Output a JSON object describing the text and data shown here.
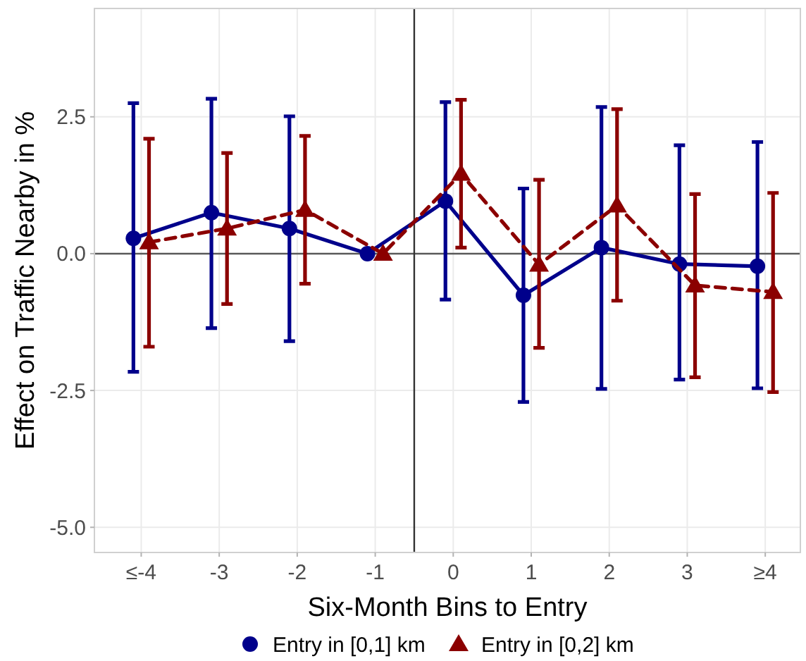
{
  "chart_data": {
    "type": "line",
    "xlabel": "Six-Month Bins to Entry",
    "ylabel": "Effect on Traffic Nearby in %",
    "xlim": [
      -4.6,
      4.45
    ],
    "xticks": [
      {
        "value": -4,
        "label": "≤-4"
      },
      -3,
      -2,
      -1,
      0,
      1,
      2,
      3,
      {
        "value": 4,
        "label": "≥4"
      }
    ],
    "ylim": [
      -5.46,
      4.48
    ],
    "yticks": [
      {
        "value": -5,
        "label": "-5.0"
      },
      {
        "value": -2.5,
        "label": "-2.5"
      },
      {
        "value": 0,
        "label": "0.0"
      },
      {
        "value": 2.5,
        "label": "2.5"
      }
    ],
    "grid": true,
    "legend": "bottom",
    "ref_lines": [
      {
        "axis": "y",
        "value": 0,
        "color": "#595959"
      },
      {
        "axis": "x",
        "value": -0.5,
        "color": "#333333"
      }
    ],
    "series": [
      {
        "name": "Entry in [0,1] km",
        "color": "#00008b",
        "marker": "circle",
        "line_style": "solid",
        "x": [
          -4.1,
          -3.1,
          -2.1,
          -1.1,
          -0.1,
          0.9,
          1.9,
          2.9,
          3.9
        ],
        "values": [
          0.28,
          0.75,
          0.46,
          0,
          0.96,
          -0.76,
          0.11,
          -0.19,
          -0.23
        ],
        "errors": [
          [
            -2.16,
            2.75
          ],
          [
            -1.36,
            2.83
          ],
          [
            -1.6,
            2.51
          ],
          null,
          [
            -0.84,
            2.77
          ],
          [
            -2.71,
            1.19
          ],
          [
            -2.47,
            2.68
          ],
          [
            -2.3,
            1.98
          ],
          [
            -2.46,
            2.04
          ]
        ]
      },
      {
        "name": "Entry in [0,2] km",
        "color": "#8b0000",
        "marker": "triangle",
        "line_style": "dashed",
        "x": [
          -3.9,
          -2.9,
          -1.9,
          -0.9,
          0.1,
          1.1,
          2.1,
          3.1,
          4.1
        ],
        "values": [
          0.21,
          0.46,
          0.8,
          0,
          1.46,
          -0.2,
          0.88,
          -0.58,
          -0.7
        ],
        "errors": [
          [
            -1.7,
            2.1
          ],
          [
            -0.92,
            1.84
          ],
          [
            -0.55,
            2.15
          ],
          null,
          [
            0.11,
            2.81
          ],
          [
            -1.72,
            1.35
          ],
          [
            -0.86,
            2.64
          ],
          [
            -2.26,
            1.09
          ],
          [
            -2.53,
            1.11
          ]
        ]
      }
    ]
  }
}
